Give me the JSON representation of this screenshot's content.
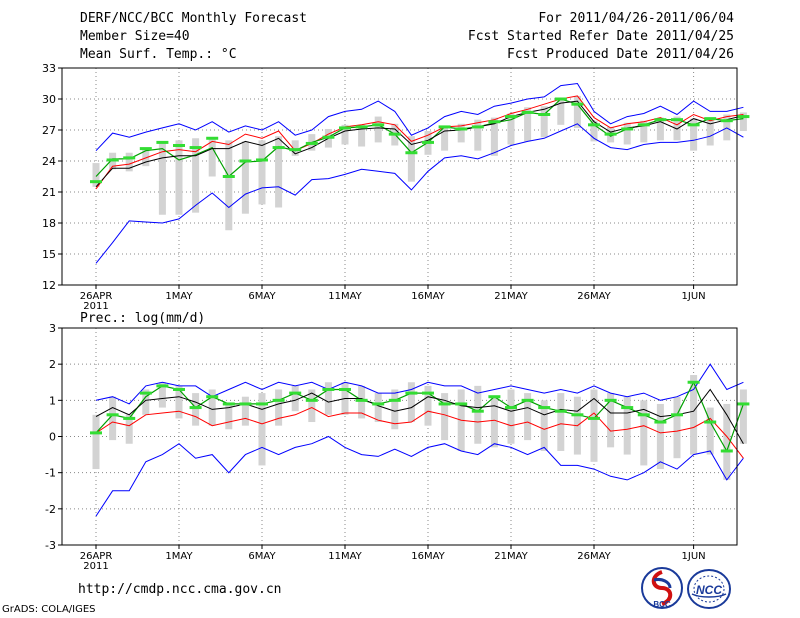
{
  "header": {
    "title": "DERF/NCC/BCC Monthly Forecast",
    "member_size": "Member Size=40",
    "variable": "Mean Surf. Temp.: °C",
    "period": "For 2011/04/26-2011/06/04",
    "started": "Fcst Started Refer Date 2011/04/25",
    "produced": "Fcst Produced Date 2011/04/26"
  },
  "footer": {
    "url": "http://cmdp.ncc.cma.gov.cn",
    "grads": "GrADS: COLA/IGES",
    "logo_bcc": "BCC",
    "logo_ncc": "NCC"
  },
  "colors": {
    "grid": "#888888",
    "box": "#d3d3d3",
    "ensemble_mean": "#000000",
    "median_green": "#00a000",
    "red_line": "#ff0000",
    "spread": "#0000ff",
    "member_mark": "#33dd33"
  },
  "chart_data": [
    {
      "type": "line",
      "name": "temperature",
      "title": "Mean Surf. Temp.: °C",
      "ylim": [
        12,
        33
      ],
      "yticks": [
        12,
        15,
        18,
        21,
        24,
        27,
        30,
        33
      ],
      "xticks": [
        {
          "day": 0,
          "label": "26APR",
          "sub": "2011"
        },
        {
          "day": 5,
          "label": "1MAY"
        },
        {
          "day": 10,
          "label": "6MAY"
        },
        {
          "day": 15,
          "label": "11MAY"
        },
        {
          "day": 20,
          "label": "16MAY"
        },
        {
          "day": 25,
          "label": "21MAY"
        },
        {
          "day": 30,
          "label": "26MAY"
        },
        {
          "day": 36,
          "label": "1JUN"
        }
      ],
      "days": [
        0,
        1,
        2,
        3,
        4,
        5,
        6,
        7,
        8,
        9,
        10,
        11,
        12,
        13,
        14,
        15,
        16,
        17,
        18,
        19,
        20,
        21,
        22,
        23,
        24,
        25,
        26,
        27,
        28,
        29,
        30,
        31,
        32,
        33,
        34,
        35,
        36,
        37,
        38,
        39
      ],
      "box_low": [
        21.5,
        23.2,
        23.0,
        23.5,
        18.8,
        18.8,
        19.0,
        22.5,
        17.3,
        18.9,
        19.8,
        19.5,
        24.5,
        25.0,
        25.3,
        25.6,
        25.4,
        25.8,
        25.5,
        22.0,
        24.6,
        25.0,
        25.8,
        25.0,
        24.5,
        25.6,
        25.9,
        26.3,
        27.5,
        27.2,
        25.9,
        25.8,
        25.6,
        25.8,
        26.0,
        26.0,
        25.0,
        25.5,
        26.0,
        26.9
      ],
      "box_high": [
        23.8,
        24.8,
        24.8,
        25.3,
        25.8,
        26.0,
        26.2,
        26.3,
        26.0,
        25.9,
        26.0,
        26.4,
        26.0,
        26.6,
        27.1,
        27.5,
        27.5,
        28.3,
        27.6,
        26.4,
        26.9,
        27.4,
        27.6,
        28.0,
        28.2,
        28.6,
        29.2,
        29.3,
        30.1,
        30.3,
        27.9,
        27.3,
        27.7,
        27.9,
        28.2,
        28.3,
        28.1,
        28.0,
        28.5,
        28.7
      ],
      "median": [
        22.5,
        24.2,
        24.2,
        25.0,
        25.2,
        24.1,
        24.6,
        25.3,
        22.5,
        23.9,
        24.0,
        25.4,
        25.0,
        25.8,
        26.3,
        27.2,
        27.3,
        27.5,
        26.6,
        24.8,
        25.8,
        27.3,
        27.1,
        27.3,
        27.7,
        28.0,
        28.7,
        28.5,
        30.0,
        29.5,
        27.5,
        26.4,
        27.1,
        27.5,
        28.0,
        28.0,
        27.5,
        28.1,
        27.9,
        28.1
      ],
      "mean": [
        21.5,
        23.3,
        23.3,
        23.9,
        24.3,
        24.5,
        24.5,
        25.2,
        25.2,
        25.9,
        25.5,
        26.2,
        24.7,
        25.3,
        26.2,
        26.9,
        27.1,
        27.2,
        27.1,
        25.6,
        26.0,
        26.9,
        27.0,
        27.3,
        27.6,
        28.3,
        28.7,
        29.0,
        29.6,
        29.8,
        27.8,
        26.8,
        27.2,
        27.4,
        27.8,
        27.1,
        28.1,
        27.6,
        28.0,
        28.4
      ],
      "red": [
        21.3,
        23.5,
        23.7,
        24.3,
        24.9,
        25.1,
        24.9,
        25.9,
        25.6,
        26.6,
        26.2,
        26.9,
        25.0,
        25.7,
        26.6,
        27.3,
        27.5,
        27.8,
        27.5,
        25.9,
        26.5,
        27.3,
        27.4,
        27.7,
        28.0,
        28.6,
        29.0,
        29.5,
        30.0,
        30.3,
        28.2,
        27.2,
        27.6,
        27.8,
        28.2,
        27.5,
        28.5,
        27.9,
        28.3,
        28.5
      ],
      "spread_upper": [
        25.0,
        26.7,
        26.3,
        26.8,
        27.2,
        27.6,
        27.0,
        27.8,
        26.8,
        27.4,
        27.0,
        27.8,
        26.5,
        27.0,
        28.3,
        28.8,
        29.0,
        29.8,
        28.8,
        26.5,
        27.2,
        28.3,
        28.8,
        28.5,
        29.3,
        29.6,
        30.0,
        30.2,
        31.3,
        31.5,
        28.8,
        27.6,
        28.3,
        28.6,
        29.3,
        28.5,
        29.8,
        28.8,
        28.8,
        29.2
      ],
      "spread_lower": [
        14.1,
        16.1,
        18.2,
        18.1,
        18.0,
        18.4,
        19.7,
        20.9,
        19.5,
        20.8,
        21.4,
        21.5,
        20.7,
        22.2,
        22.3,
        22.7,
        23.2,
        23.0,
        22.8,
        21.2,
        23.0,
        24.3,
        24.5,
        24.2,
        24.8,
        25.5,
        25.9,
        26.2,
        26.9,
        27.6,
        26.2,
        25.3,
        25.1,
        25.6,
        25.8,
        25.8,
        26.0,
        26.4,
        27.2,
        26.3
      ],
      "member": [
        22.0,
        24.1,
        24.3,
        25.2,
        25.8,
        25.5,
        25.3,
        26.2,
        22.5,
        24.0,
        24.1,
        25.3,
        25.1,
        25.7,
        26.3,
        27.2,
        27.3,
        27.5,
        26.6,
        24.8,
        25.8,
        27.3,
        27.1,
        27.3,
        27.8,
        28.3,
        28.7,
        28.5,
        30.0,
        29.5,
        27.5,
        26.6,
        27.1,
        27.5,
        28.0,
        28.0,
        27.5,
        28.1,
        27.9,
        28.3
      ]
    },
    {
      "type": "line",
      "name": "precipitation",
      "title": "Prec.: log(mm/d)",
      "ylim": [
        -3,
        3
      ],
      "yticks": [
        -3,
        -2,
        -1,
        0,
        1,
        2,
        3
      ],
      "xticks": [
        {
          "day": 0,
          "label": "26APR",
          "sub": "2011"
        },
        {
          "day": 5,
          "label": "1MAY"
        },
        {
          "day": 10,
          "label": "6MAY"
        },
        {
          "day": 15,
          "label": "11MAY"
        },
        {
          "day": 20,
          "label": "16MAY"
        },
        {
          "day": 25,
          "label": "21MAY"
        },
        {
          "day": 30,
          "label": "26MAY"
        },
        {
          "day": 36,
          "label": "1JUN"
        }
      ],
      "days": [
        0,
        1,
        2,
        3,
        4,
        5,
        6,
        7,
        8,
        9,
        10,
        11,
        12,
        13,
        14,
        15,
        16,
        17,
        18,
        19,
        20,
        21,
        22,
        23,
        24,
        25,
        26,
        27,
        28,
        29,
        30,
        31,
        32,
        33,
        34,
        35,
        36,
        37,
        38,
        39
      ],
      "box_low": [
        -0.9,
        -0.1,
        -0.2,
        0.6,
        0.8,
        0.5,
        0.3,
        0.3,
        0.2,
        0.3,
        -0.8,
        0.3,
        0.7,
        0.4,
        0.6,
        0.6,
        0.5,
        0.4,
        0.2,
        0.4,
        0.3,
        -0.1,
        -0.4,
        -0.2,
        -0.3,
        -0.2,
        -0.1,
        -0.4,
        -0.4,
        -0.5,
        -0.7,
        -0.3,
        -0.5,
        -0.8,
        -0.9,
        -0.6,
        -0.5,
        -0.5,
        -1.2,
        -0.2
      ],
      "box_high": [
        0.6,
        1.1,
        0.6,
        1.3,
        1.5,
        1.4,
        1.2,
        1.3,
        0.9,
        1.1,
        1.2,
        1.3,
        1.4,
        1.3,
        1.5,
        1.5,
        1.4,
        1.2,
        1.3,
        1.5,
        1.4,
        1.2,
        1.3,
        1.4,
        1.1,
        1.3,
        1.2,
        1.0,
        1.2,
        1.1,
        1.3,
        1.2,
        1.1,
        1.0,
        0.9,
        1.1,
        1.7,
        0.8,
        0.9,
        1.3
      ],
      "median": [
        0.1,
        0.6,
        0.5,
        1.1,
        1.4,
        1.3,
        0.8,
        1.1,
        0.9,
        0.9,
        0.9,
        1.0,
        1.2,
        1.0,
        1.3,
        1.3,
        1.0,
        0.9,
        1.0,
        1.2,
        1.2,
        0.9,
        0.9,
        0.7,
        1.1,
        0.8,
        1.0,
        0.8,
        0.7,
        0.6,
        0.5,
        1.0,
        0.8,
        0.6,
        0.4,
        0.6,
        1.5,
        0.4,
        -0.4,
        0.9
      ],
      "mean": [
        0.55,
        0.8,
        0.6,
        1.0,
        1.05,
        1.1,
        0.95,
        0.75,
        0.8,
        0.9,
        0.75,
        0.9,
        1.0,
        1.2,
        0.95,
        1.05,
        1.05,
        0.85,
        0.7,
        0.8,
        1.1,
        1.0,
        0.85,
        0.8,
        0.85,
        0.7,
        0.8,
        0.6,
        0.75,
        0.7,
        1.05,
        0.65,
        0.65,
        0.75,
        0.55,
        0.6,
        0.7,
        1.3,
        0.6,
        -0.2
      ],
      "red": [
        0.1,
        0.4,
        0.3,
        0.6,
        0.65,
        0.7,
        0.55,
        0.3,
        0.4,
        0.5,
        0.35,
        0.5,
        0.6,
        0.8,
        0.55,
        0.65,
        0.65,
        0.45,
        0.35,
        0.4,
        0.7,
        0.6,
        0.45,
        0.4,
        0.45,
        0.3,
        0.4,
        0.2,
        0.35,
        0.3,
        0.65,
        0.15,
        0.2,
        0.3,
        0.1,
        0.15,
        0.25,
        0.5,
        0.0,
        -0.6
      ],
      "spread_upper": [
        1.0,
        1.1,
        0.9,
        1.4,
        1.5,
        1.4,
        1.4,
        1.1,
        1.3,
        1.5,
        1.3,
        1.5,
        1.4,
        1.5,
        1.3,
        1.5,
        1.4,
        1.2,
        1.2,
        1.3,
        1.5,
        1.4,
        1.4,
        1.2,
        1.3,
        1.4,
        1.3,
        1.2,
        1.3,
        1.2,
        1.4,
        1.2,
        1.1,
        1.2,
        1.0,
        1.1,
        1.3,
        2.0,
        1.3,
        1.5
      ],
      "spread_lower": [
        -2.2,
        -1.5,
        -1.5,
        -0.7,
        -0.5,
        -0.2,
        -0.6,
        -0.5,
        -1.0,
        -0.5,
        -0.3,
        -0.5,
        -0.3,
        -0.2,
        0.0,
        -0.3,
        -0.5,
        -0.55,
        -0.35,
        -0.55,
        -0.3,
        -0.2,
        -0.4,
        -0.5,
        -0.2,
        -0.3,
        -0.5,
        -0.3,
        -0.8,
        -0.8,
        -0.9,
        -1.1,
        -1.2,
        -1.0,
        -0.7,
        -0.9,
        -0.5,
        -0.4,
        -1.2,
        -0.6
      ],
      "member": [
        0.1,
        0.6,
        0.5,
        1.2,
        1.4,
        1.3,
        0.8,
        1.1,
        0.9,
        0.9,
        0.9,
        1.0,
        1.2,
        1.0,
        1.3,
        1.3,
        1.0,
        0.9,
        1.0,
        1.2,
        1.2,
        0.9,
        0.9,
        0.7,
        1.1,
        0.8,
        1.0,
        0.8,
        0.7,
        0.6,
        0.5,
        1.0,
        0.8,
        0.6,
        0.4,
        0.6,
        1.5,
        0.4,
        -0.4,
        0.9
      ]
    }
  ]
}
